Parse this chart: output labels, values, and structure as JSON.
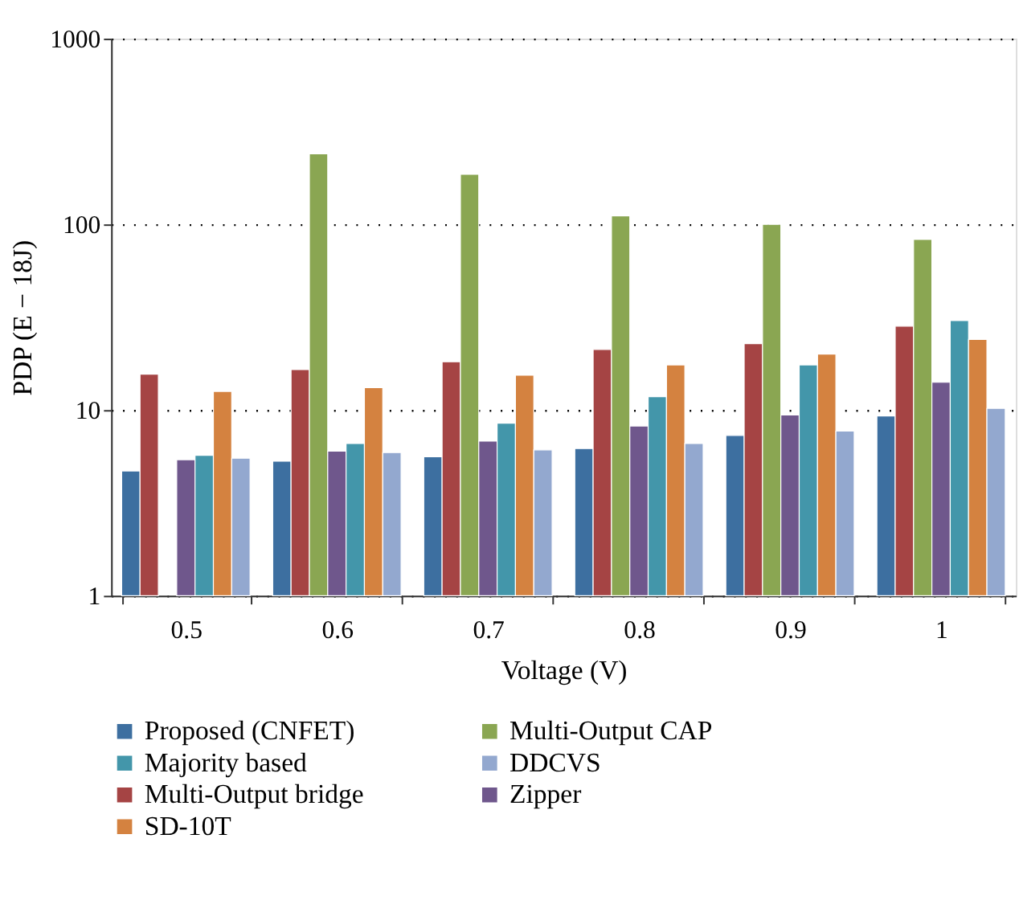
{
  "chart_data": {
    "type": "bar",
    "xlabel": "Voltage (V)",
    "ylabel": "PDP (E − 18J)",
    "categories": [
      "0.5",
      "0.6",
      "0.7",
      "0.8",
      "0.9",
      "1"
    ],
    "series": [
      {
        "name": "Proposed (CNFET)",
        "color": "#3d6fa0",
        "values": [
          4.7,
          5.3,
          5.6,
          6.2,
          7.3,
          9.3
        ]
      },
      {
        "name": "Multi-Output bridge",
        "color": "#a54444",
        "values": [
          15.6,
          16.5,
          18.2,
          21.2,
          22.8,
          28.3
        ]
      },
      {
        "name": "Multi-Output CAP",
        "color": "#8aa652",
        "values": [
          null,
          240,
          186,
          111,
          100,
          83
        ]
      },
      {
        "name": "Zipper",
        "color": "#6f578c",
        "values": [
          5.4,
          6.0,
          6.8,
          8.2,
          9.4,
          14.1
        ]
      },
      {
        "name": "Majority based",
        "color": "#4396aa",
        "values": [
          5.7,
          6.6,
          8.5,
          11.8,
          17.5,
          30.3
        ]
      },
      {
        "name": "SD-10T",
        "color": "#d48240",
        "values": [
          12.6,
          13.2,
          15.4,
          17.5,
          20.0,
          24.0
        ]
      },
      {
        "name": "DDCVS",
        "color": "#93a8cf",
        "values": [
          5.5,
          5.9,
          6.1,
          6.6,
          7.7,
          10.2
        ]
      }
    ],
    "log": "y",
    "ylim": [
      1,
      1000
    ],
    "yticks": [
      1,
      10,
      100,
      1000
    ],
    "grid": "y",
    "legend": "bottom"
  }
}
